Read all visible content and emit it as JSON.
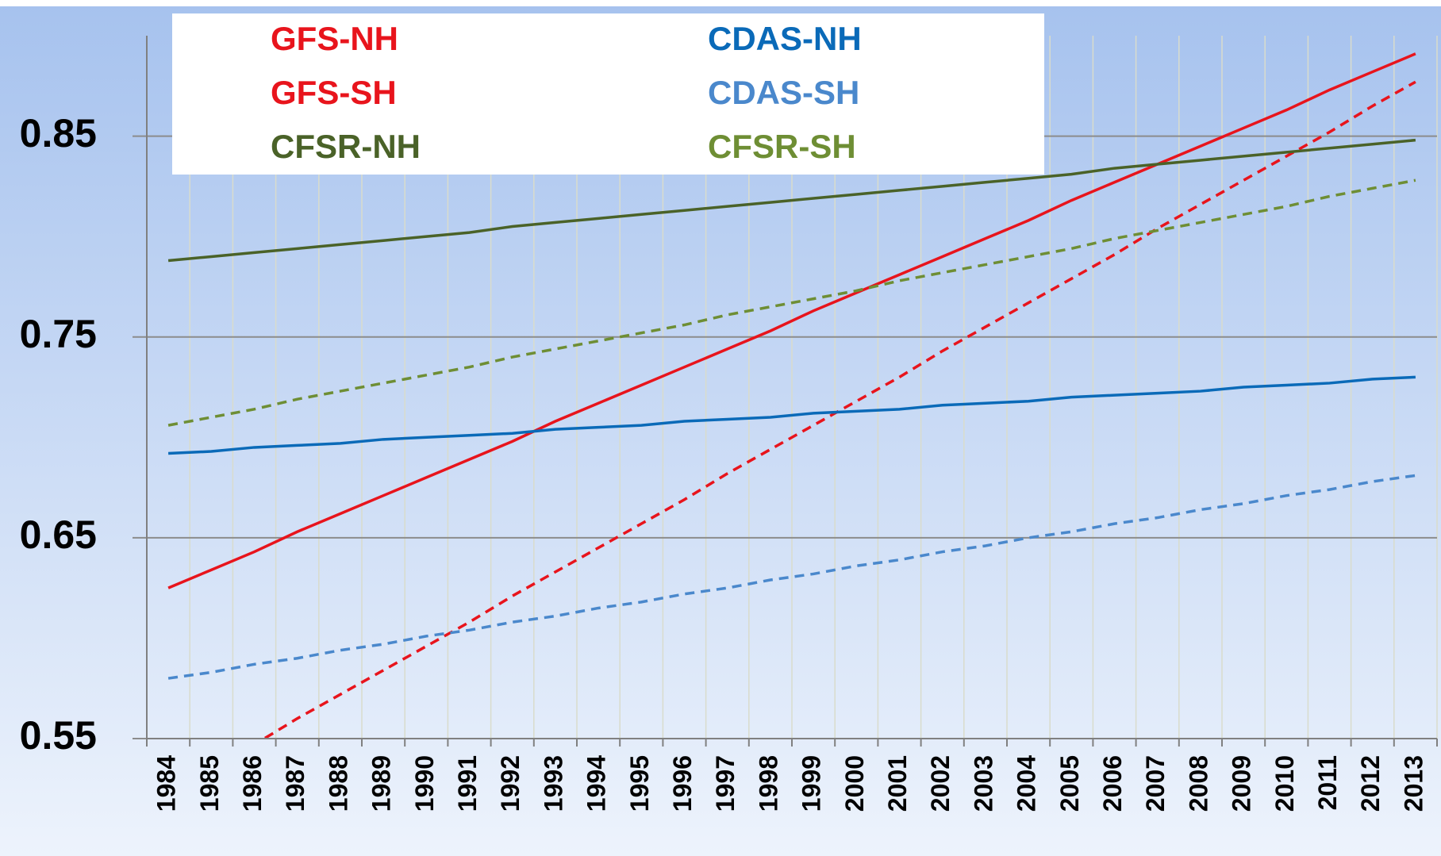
{
  "chart_data": {
    "type": "line",
    "categories": [
      "1984",
      "1985",
      "1986",
      "1987",
      "1988",
      "1989",
      "1990",
      "1991",
      "1992",
      "1993",
      "1994",
      "1995",
      "1996",
      "1997",
      "1998",
      "1999",
      "2000",
      "2001",
      "2002",
      "2003",
      "2004",
      "2005",
      "2006",
      "2007",
      "2008",
      "2009",
      "2010",
      "2011",
      "2012",
      "2013"
    ],
    "series": [
      {
        "name": "GFS-NH",
        "color": "#e8141c",
        "dash": false,
        "values": [
          0.625,
          0.634,
          0.643,
          0.653,
          0.662,
          0.671,
          0.68,
          0.689,
          0.698,
          0.708,
          0.717,
          0.726,
          0.735,
          0.744,
          0.753,
          0.763,
          0.772,
          0.781,
          0.79,
          0.799,
          0.808,
          0.818,
          0.827,
          0.836,
          0.845,
          0.854,
          0.863,
          0.873,
          0.882,
          0.891
        ]
      },
      {
        "name": "GFS-SH",
        "color": "#e8141c",
        "dash": true,
        "values": [
          0.523,
          0.535,
          0.547,
          0.56,
          0.572,
          0.584,
          0.596,
          0.608,
          0.621,
          0.633,
          0.645,
          0.657,
          0.669,
          0.682,
          0.694,
          0.706,
          0.718,
          0.73,
          0.743,
          0.755,
          0.767,
          0.779,
          0.791,
          0.804,
          0.816,
          0.828,
          0.84,
          0.852,
          0.865,
          0.877
        ]
      },
      {
        "name": "CFSR-NH",
        "color": "#4a6228",
        "dash": false,
        "values": [
          0.788,
          0.79,
          0.792,
          0.794,
          0.796,
          0.798,
          0.8,
          0.802,
          0.805,
          0.807,
          0.809,
          0.811,
          0.813,
          0.815,
          0.817,
          0.819,
          0.821,
          0.823,
          0.825,
          0.827,
          0.829,
          0.831,
          0.834,
          0.836,
          0.838,
          0.84,
          0.842,
          0.844,
          0.846,
          0.848
        ]
      },
      {
        "name": "CDAS-NH",
        "color": "#0a6ab8",
        "dash": false,
        "values": [
          0.692,
          0.693,
          0.695,
          0.696,
          0.697,
          0.699,
          0.7,
          0.701,
          0.702,
          0.704,
          0.705,
          0.706,
          0.708,
          0.709,
          0.71,
          0.712,
          0.713,
          0.714,
          0.716,
          0.717,
          0.718,
          0.72,
          0.721,
          0.722,
          0.723,
          0.725,
          0.726,
          0.727,
          0.729,
          0.73
        ]
      },
      {
        "name": "CDAS-SH",
        "color": "#4a88cc",
        "dash": true,
        "values": [
          0.58,
          0.583,
          0.587,
          0.59,
          0.594,
          0.597,
          0.601,
          0.604,
          0.608,
          0.611,
          0.615,
          0.618,
          0.622,
          0.625,
          0.629,
          0.632,
          0.636,
          0.639,
          0.643,
          0.646,
          0.65,
          0.653,
          0.657,
          0.66,
          0.664,
          0.667,
          0.671,
          0.674,
          0.678,
          0.681
        ]
      },
      {
        "name": "CFSR-SH",
        "color": "#6e8e34",
        "dash": true,
        "values": [
          0.706,
          0.71,
          0.714,
          0.719,
          0.723,
          0.727,
          0.731,
          0.735,
          0.74,
          0.744,
          0.748,
          0.752,
          0.756,
          0.761,
          0.765,
          0.769,
          0.773,
          0.778,
          0.782,
          0.786,
          0.79,
          0.794,
          0.799,
          0.803,
          0.807,
          0.811,
          0.815,
          0.82,
          0.824,
          0.828
        ]
      }
    ],
    "ylim": [
      0.55,
      0.9
    ],
    "yticks": [
      0.55,
      0.65,
      0.75,
      0.85
    ],
    "grid": true
  }
}
